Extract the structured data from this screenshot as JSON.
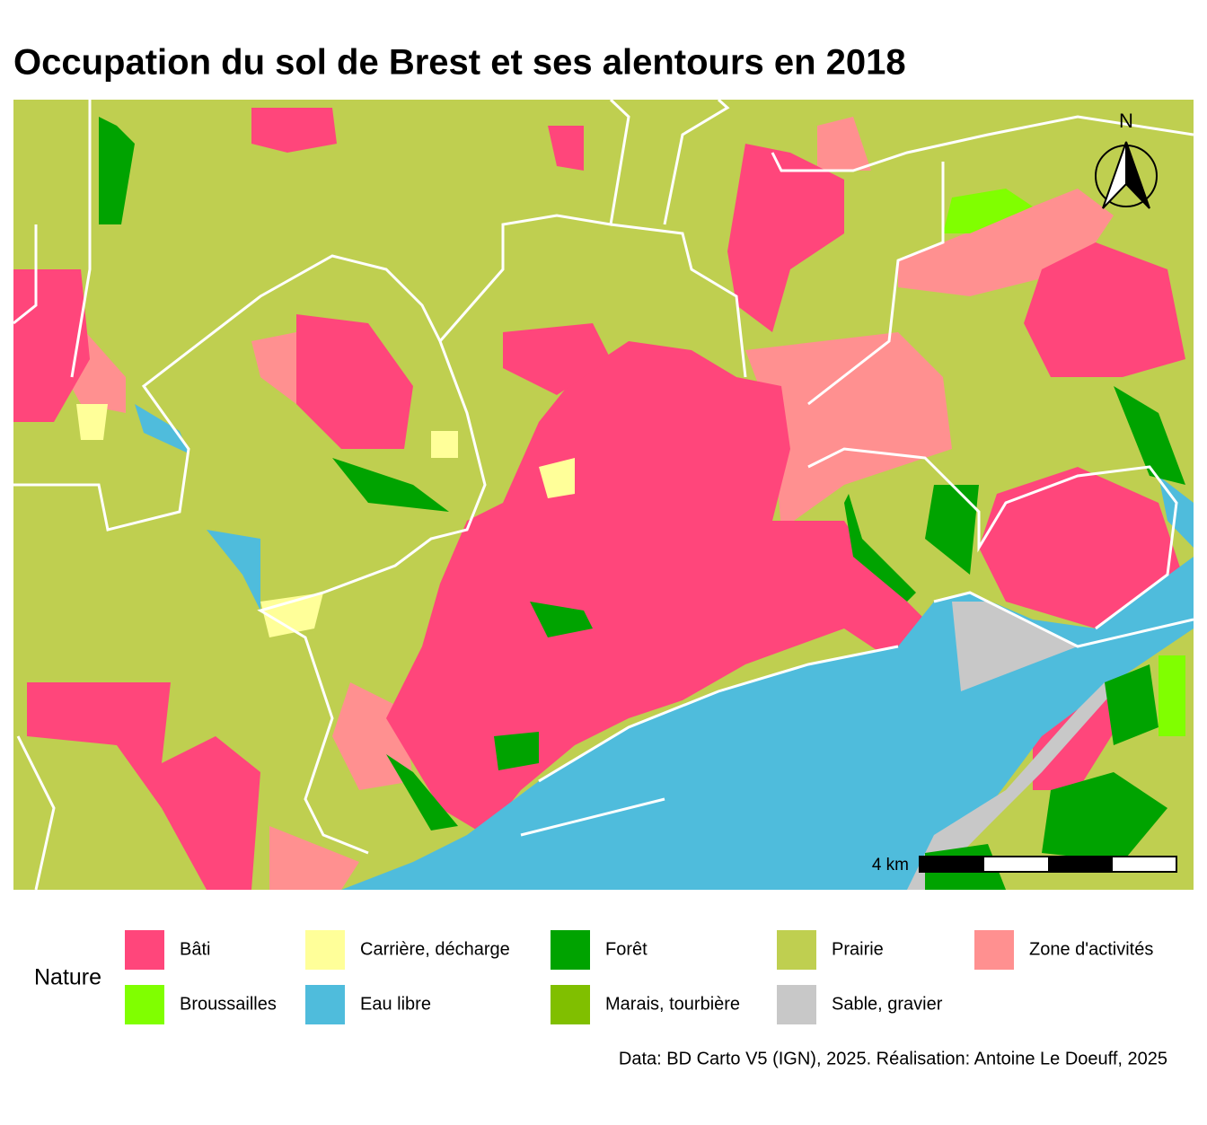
{
  "title": "Occupation du sol de Brest et ses alentours en 2018",
  "legend": {
    "title": "Nature",
    "items": [
      {
        "label": "Bâti",
        "color": "#ff467b"
      },
      {
        "label": "Broussailles",
        "color": "#80ff00"
      },
      {
        "label": "Carrière, décharge",
        "color": "#ffff99"
      },
      {
        "label": "Eau libre",
        "color": "#4fbcdc"
      },
      {
        "label": "Forêt",
        "color": "#00a300"
      },
      {
        "label": "Marais, tourbière",
        "color": "#80bf00"
      },
      {
        "label": "Prairie",
        "color": "#bfcf50"
      },
      {
        "label": "Sable, gravier",
        "color": "#c8c8c8"
      },
      {
        "label": "Zone d'activités",
        "color": "#ff9090"
      }
    ]
  },
  "scale_bar": {
    "label": "4 km"
  },
  "north_arrow": {
    "label": "N"
  },
  "caption": "Data: BD Carto V5 (IGN), 2025. Réalisation: Antoine Le Doeuff, 2025"
}
